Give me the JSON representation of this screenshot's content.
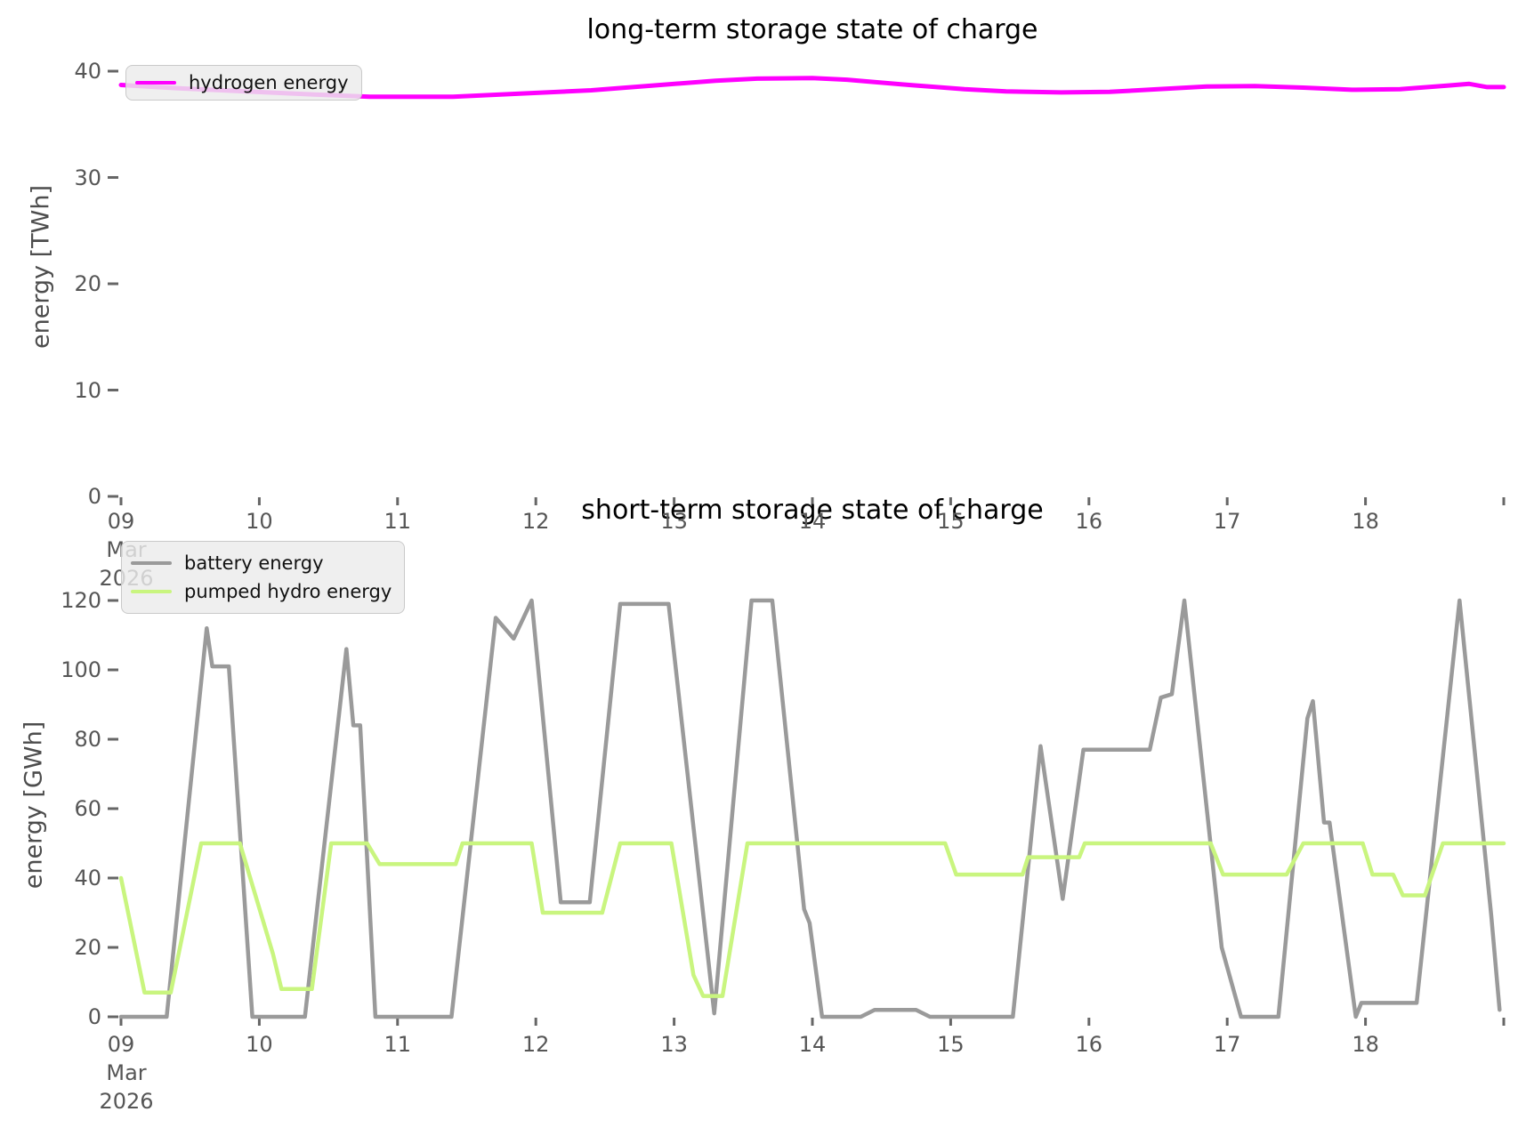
{
  "figure": {
    "background": "#ffffff",
    "tick_color": "#666666",
    "tick_text_color": "#565656"
  },
  "charts": [
    {
      "title": "long-term storage state of charge",
      "ylabel": "energy [TWh]",
      "yticks": [
        0,
        10,
        20,
        30,
        40
      ],
      "xticks": [
        {
          "day": 9,
          "label": "09",
          "sub": [
            "Mar",
            "2026"
          ]
        },
        {
          "day": 10,
          "label": "10"
        },
        {
          "day": 11,
          "label": "11"
        },
        {
          "day": 12,
          "label": "12"
        },
        {
          "day": 13,
          "label": "13"
        },
        {
          "day": 14,
          "label": "14"
        },
        {
          "day": 15,
          "label": "15"
        },
        {
          "day": 16,
          "label": "16"
        },
        {
          "day": 17,
          "label": "17"
        },
        {
          "day": 18,
          "label": "18"
        },
        {
          "day": 19,
          "label": ""
        }
      ],
      "legend": [
        {
          "label": "hydrogen energy",
          "color": "#ff00ff"
        }
      ]
    },
    {
      "title": "short-term storage state of charge",
      "ylabel": "energy [GWh]",
      "yticks": [
        0,
        20,
        40,
        60,
        80,
        100,
        120
      ],
      "xticks": [
        {
          "day": 9,
          "label": "09",
          "sub": [
            "Mar",
            "2026"
          ]
        },
        {
          "day": 10,
          "label": "10"
        },
        {
          "day": 11,
          "label": "11"
        },
        {
          "day": 12,
          "label": "12"
        },
        {
          "day": 13,
          "label": "13"
        },
        {
          "day": 14,
          "label": "14"
        },
        {
          "day": 15,
          "label": "15"
        },
        {
          "day": 16,
          "label": "16"
        },
        {
          "day": 17,
          "label": "17"
        },
        {
          "day": 18,
          "label": "18"
        },
        {
          "day": 19,
          "label": ""
        }
      ],
      "legend": [
        {
          "label": "battery energy",
          "color": "#9a9a9a"
        },
        {
          "label": "pumped hydro energy",
          "color": "#c9f57f"
        }
      ]
    }
  ],
  "chart_data": [
    {
      "type": "line",
      "title": "long-term storage state of charge",
      "ylabel": "energy [TWh]",
      "x_unit": "day of March 2026",
      "xlim": [
        9,
        19
      ],
      "ylim": [
        0,
        40
      ],
      "grid": false,
      "legend_position": "upper left",
      "series": [
        {
          "name": "hydrogen energy",
          "color": "#ff00ff",
          "points": [
            [
              9.0,
              38.7
            ],
            [
              9.4,
              38.4
            ],
            [
              9.9,
              38.1
            ],
            [
              10.4,
              37.8
            ],
            [
              10.8,
              37.6
            ],
            [
              11.4,
              37.6
            ],
            [
              11.9,
              37.9
            ],
            [
              12.4,
              38.2
            ],
            [
              12.9,
              38.7
            ],
            [
              13.3,
              39.1
            ],
            [
              13.6,
              39.3
            ],
            [
              14.0,
              39.35
            ],
            [
              14.25,
              39.2
            ],
            [
              14.7,
              38.7
            ],
            [
              15.1,
              38.3
            ],
            [
              15.4,
              38.1
            ],
            [
              15.8,
              38.0
            ],
            [
              16.15,
              38.05
            ],
            [
              16.5,
              38.3
            ],
            [
              16.85,
              38.55
            ],
            [
              17.2,
              38.6
            ],
            [
              17.55,
              38.45
            ],
            [
              17.9,
              38.25
            ],
            [
              18.25,
              38.3
            ],
            [
              18.6,
              38.65
            ],
            [
              18.75,
              38.8
            ],
            [
              18.88,
              38.5
            ],
            [
              19.0,
              38.5
            ]
          ]
        }
      ]
    },
    {
      "type": "line",
      "title": "short-term storage state of charge",
      "ylabel": "energy [GWh]",
      "x_unit": "day of March 2026",
      "xlim": [
        9,
        19
      ],
      "ylim": [
        0,
        120
      ],
      "grid": false,
      "legend_position": "upper left",
      "series": [
        {
          "name": "battery energy",
          "color": "#9a9a9a",
          "points": [
            [
              9.0,
              0
            ],
            [
              9.33,
              0
            ],
            [
              9.62,
              112
            ],
            [
              9.66,
              101
            ],
            [
              9.78,
              101
            ],
            [
              9.95,
              0
            ],
            [
              10.33,
              0
            ],
            [
              10.63,
              106
            ],
            [
              10.68,
              84
            ],
            [
              10.73,
              84
            ],
            [
              10.84,
              0
            ],
            [
              11.39,
              0
            ],
            [
              11.71,
              115
            ],
            [
              11.84,
              109
            ],
            [
              11.97,
              120
            ],
            [
              12.18,
              33
            ],
            [
              12.39,
              33
            ],
            [
              12.61,
              119
            ],
            [
              12.96,
              119
            ],
            [
              13.29,
              1
            ],
            [
              13.56,
              120
            ],
            [
              13.71,
              120
            ],
            [
              13.94,
              31
            ],
            [
              13.98,
              27
            ],
            [
              14.07,
              0
            ],
            [
              14.35,
              0
            ],
            [
              14.45,
              2
            ],
            [
              14.75,
              2
            ],
            [
              14.85,
              0
            ],
            [
              15.45,
              0
            ],
            [
              15.65,
              78
            ],
            [
              15.81,
              34
            ],
            [
              15.96,
              77
            ],
            [
              16.44,
              77
            ],
            [
              16.52,
              92
            ],
            [
              16.6,
              93
            ],
            [
              16.69,
              120
            ],
            [
              16.96,
              20
            ],
            [
              17.1,
              0
            ],
            [
              17.37,
              0
            ],
            [
              17.58,
              86
            ],
            [
              17.62,
              91
            ],
            [
              17.7,
              56
            ],
            [
              17.74,
              56
            ],
            [
              17.93,
              0
            ],
            [
              17.97,
              4
            ],
            [
              18.37,
              4
            ],
            [
              18.68,
              120
            ],
            [
              18.91,
              29
            ],
            [
              18.97,
              2
            ]
          ]
        },
        {
          "name": "pumped hydro energy",
          "color": "#c9f57f",
          "points": [
            [
              9.0,
              40
            ],
            [
              9.17,
              7
            ],
            [
              9.36,
              7
            ],
            [
              9.58,
              50
            ],
            [
              9.86,
              50
            ],
            [
              10.1,
              18
            ],
            [
              10.16,
              8
            ],
            [
              10.38,
              8
            ],
            [
              10.52,
              50
            ],
            [
              10.78,
              50
            ],
            [
              10.87,
              44
            ],
            [
              11.42,
              44
            ],
            [
              11.47,
              50
            ],
            [
              11.97,
              50
            ],
            [
              12.05,
              30
            ],
            [
              12.48,
              30
            ],
            [
              12.61,
              50
            ],
            [
              12.98,
              50
            ],
            [
              13.14,
              12
            ],
            [
              13.21,
              6
            ],
            [
              13.35,
              6
            ],
            [
              13.53,
              50
            ],
            [
              14.96,
              50
            ],
            [
              15.04,
              41
            ],
            [
              15.52,
              41
            ],
            [
              15.56,
              46
            ],
            [
              15.93,
              46
            ],
            [
              15.97,
              50
            ],
            [
              16.88,
              50
            ],
            [
              16.97,
              41
            ],
            [
              17.43,
              41
            ],
            [
              17.55,
              50
            ],
            [
              17.98,
              50
            ],
            [
              18.05,
              41
            ],
            [
              18.2,
              41
            ],
            [
              18.27,
              35
            ],
            [
              18.43,
              35
            ],
            [
              18.56,
              50
            ],
            [
              19.0,
              50
            ]
          ]
        }
      ]
    }
  ]
}
